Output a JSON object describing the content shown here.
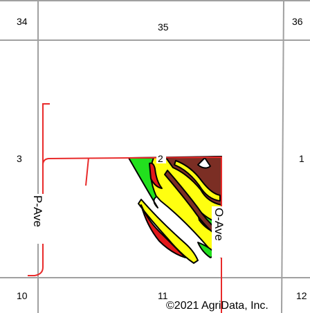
{
  "map": {
    "sections": [
      "34",
      "35",
      "36",
      "3",
      "2",
      "1",
      "10",
      "11",
      "12"
    ],
    "roads": {
      "p_ave": "P-Ave",
      "o_ave": "O-Ave"
    },
    "copyright": "©2021 AgriData, Inc.",
    "colors": {
      "section_line": "#a0a0a0",
      "road": "#e82a2a",
      "soil_green": "#22e01e",
      "soil_yellow": "#ffff10",
      "soil_brown": "#7b2e24",
      "soil_red": "#e3191b",
      "soil_outline": "#000000"
    }
  }
}
